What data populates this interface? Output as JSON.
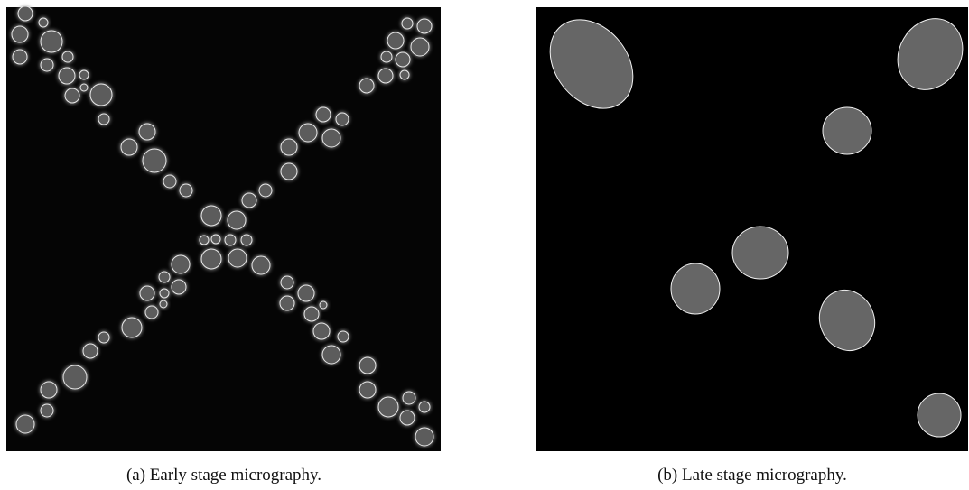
{
  "panels": [
    {
      "caption": "(a) Early stage micrography."
    },
    {
      "caption": "(b) Late stage micrography."
    }
  ]
}
